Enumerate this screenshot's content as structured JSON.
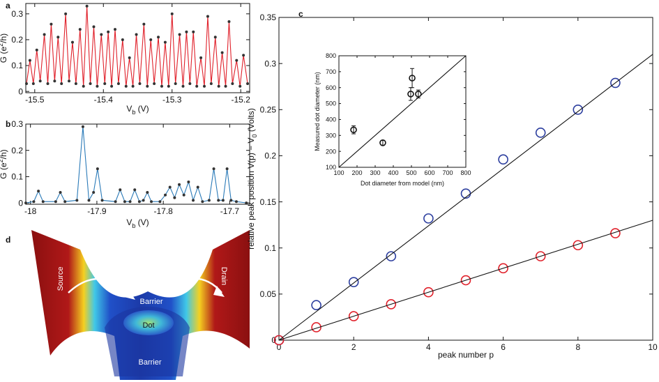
{
  "chart_data": [
    {
      "type": "line",
      "panel_label": "a",
      "xlabel": {
        "text": "V",
        "sub": "b",
        "after": " (V)"
      },
      "ylabel": {
        "text": "G (e",
        "sup": "2",
        "after": "/h)"
      },
      "xlim": [
        -15.513,
        -15.187
      ],
      "ylim": [
        -0.005,
        0.34
      ],
      "xticks": [
        -15.5,
        -15.4,
        -15.3,
        -15.2
      ],
      "yticks": [
        0,
        0.1,
        0.2,
        0.3
      ],
      "series": [
        {
          "color": "#e0202a",
          "marker_color": "#333333",
          "mode": "line+dots",
          "x": [
            -15.512,
            -15.507,
            -15.502,
            -15.497,
            -15.492,
            -15.486,
            -15.481,
            -15.476,
            -15.471,
            -15.466,
            -15.461,
            -15.455,
            -15.45,
            -15.445,
            -15.44,
            -15.434,
            -15.429,
            -15.424,
            -15.419,
            -15.414,
            -15.409,
            -15.403,
            -15.398,
            -15.393,
            -15.388,
            -15.383,
            -15.378,
            -15.372,
            -15.367,
            -15.362,
            -15.357,
            -15.352,
            -15.347,
            -15.341,
            -15.336,
            -15.331,
            -15.326,
            -15.32,
            -15.315,
            -15.31,
            -15.305,
            -15.3,
            -15.295,
            -15.289,
            -15.284,
            -15.279,
            -15.274,
            -15.269,
            -15.264,
            -15.258,
            -15.253,
            -15.248,
            -15.243,
            -15.237,
            -15.232,
            -15.227,
            -15.222,
            -15.217,
            -15.212,
            -15.206,
            -15.201,
            -15.196,
            -15.19
          ],
          "values": [
            0.03,
            0.12,
            0.03,
            0.16,
            0.04,
            0.22,
            0.03,
            0.26,
            0.04,
            0.21,
            0.03,
            0.3,
            0.04,
            0.19,
            0.03,
            0.24,
            0.02,
            0.33,
            0.03,
            0.25,
            0.02,
            0.22,
            0.03,
            0.23,
            0.02,
            0.24,
            0.03,
            0.2,
            0.02,
            0.13,
            0.02,
            0.22,
            0.03,
            0.26,
            0.02,
            0.2,
            0.03,
            0.21,
            0.02,
            0.19,
            0.02,
            0.3,
            0.03,
            0.22,
            0.02,
            0.23,
            0.03,
            0.23,
            0.02,
            0.13,
            0.02,
            0.29,
            0.03,
            0.21,
            0.02,
            0.15,
            0.02,
            0.27,
            0.03,
            0.12,
            0.02,
            0.14,
            0.03
          ]
        }
      ]
    },
    {
      "type": "line",
      "panel_label": "b",
      "xlabel": {
        "text": "V",
        "sub": "b",
        "after": " (V)"
      },
      "ylabel": {
        "text": "G (e",
        "sup": "2",
        "after": "/h)"
      },
      "xlim": [
        -18.007,
        -17.67
      ],
      "ylim": [
        -0.005,
        0.3
      ],
      "xticks": [
        -18,
        -17.9,
        -17.8,
        -17.7
      ],
      "yticks": [
        0,
        0.1,
        0.2,
        0.3
      ],
      "series": [
        {
          "color": "#2a7ab8",
          "marker_color": "#333333",
          "mode": "line+dots",
          "x": [
            -18.007,
            -17.995,
            -17.988,
            -17.981,
            -17.962,
            -17.955,
            -17.948,
            -17.93,
            -17.921,
            -17.912,
            -17.905,
            -17.899,
            -17.892,
            -17.872,
            -17.865,
            -17.858,
            -17.85,
            -17.843,
            -17.836,
            -17.83,
            -17.824,
            -17.818,
            -17.805,
            -17.797,
            -17.79,
            -17.783,
            -17.776,
            -17.769,
            -17.762,
            -17.755,
            -17.748,
            -17.741,
            -17.731,
            -17.724,
            -17.717,
            -17.71,
            -17.704,
            -17.698,
            -17.69,
            -17.675
          ],
          "values": [
            0,
            0.005,
            0.045,
            0.005,
            0.005,
            0.04,
            0.005,
            0.01,
            0.29,
            0.01,
            0.04,
            0.13,
            0.01,
            0.005,
            0.05,
            0.005,
            0.005,
            0.05,
            0.005,
            0.01,
            0.04,
            0.005,
            0.005,
            0.03,
            0.06,
            0.02,
            0.07,
            0.03,
            0.08,
            0.01,
            0.06,
            0.005,
            0.01,
            0.13,
            0.01,
            0.01,
            0.13,
            0.01,
            0.005,
            0
          ]
        }
      ]
    },
    {
      "type": "scatter",
      "panel_label": "c",
      "xlabel": "peak number p",
      "ylabel": {
        "text": "relative peak position V(p) − V",
        "sub": "0",
        "after": " (Volts)"
      },
      "xlim": [
        0,
        10
      ],
      "ylim": [
        0,
        0.35
      ],
      "xticks": [
        0,
        2,
        4,
        6,
        8,
        10
      ],
      "yticks": [
        0,
        0.05,
        0.1,
        0.15,
        0.2,
        0.25,
        0.3,
        0.35
      ],
      "series": [
        {
          "color": "#2b3d9e",
          "mode": "circles",
          "x": [
            0,
            1,
            2,
            3,
            4,
            5,
            6,
            7,
            8,
            9
          ],
          "values": [
            0,
            0.038,
            0.063,
            0.091,
            0.132,
            0.159,
            0.196,
            0.225,
            0.25,
            0.279
          ]
        },
        {
          "color": "#e0202a",
          "mode": "circles",
          "x": [
            0,
            1,
            2,
            3,
            4,
            5,
            6,
            7,
            8,
            9
          ],
          "values": [
            0,
            0.014,
            0.026,
            0.039,
            0.052,
            0.065,
            0.078,
            0.091,
            0.103,
            0.116
          ]
        },
        {
          "color": "#111111",
          "mode": "line",
          "x": [
            0,
            10
          ],
          "values": [
            0,
            0.31
          ]
        },
        {
          "color": "#111111",
          "mode": "line",
          "x": [
            0,
            10
          ],
          "values": [
            0,
            0.13
          ]
        }
      ]
    },
    {
      "type": "scatter",
      "xlabel": "Dot diameter from model (nm)",
      "ylabel": "Measured dot diameter (nm)",
      "xlim": [
        100,
        800
      ],
      "ylim": [
        100,
        800
      ],
      "xticks": [
        100,
        200,
        300,
        400,
        500,
        600,
        700,
        800
      ],
      "yticks": [
        100,
        200,
        300,
        400,
        500,
        600,
        700,
        800
      ],
      "series": [
        {
          "color": "#111111",
          "mode": "circles",
          "x": [
            181,
            342,
            496,
            504,
            538
          ],
          "values": [
            335,
            254,
            560,
            660,
            560
          ],
          "yerr": [
            25,
            15,
            40,
            60,
            25
          ]
        },
        {
          "color": "#111111",
          "mode": "line",
          "x": [
            100,
            800
          ],
          "values": [
            100,
            800
          ]
        }
      ]
    }
  ],
  "illustration": {
    "panel_label": "d",
    "labels": [
      "Source",
      "Barrier",
      "Dot",
      "Barrier",
      "Drain"
    ]
  }
}
